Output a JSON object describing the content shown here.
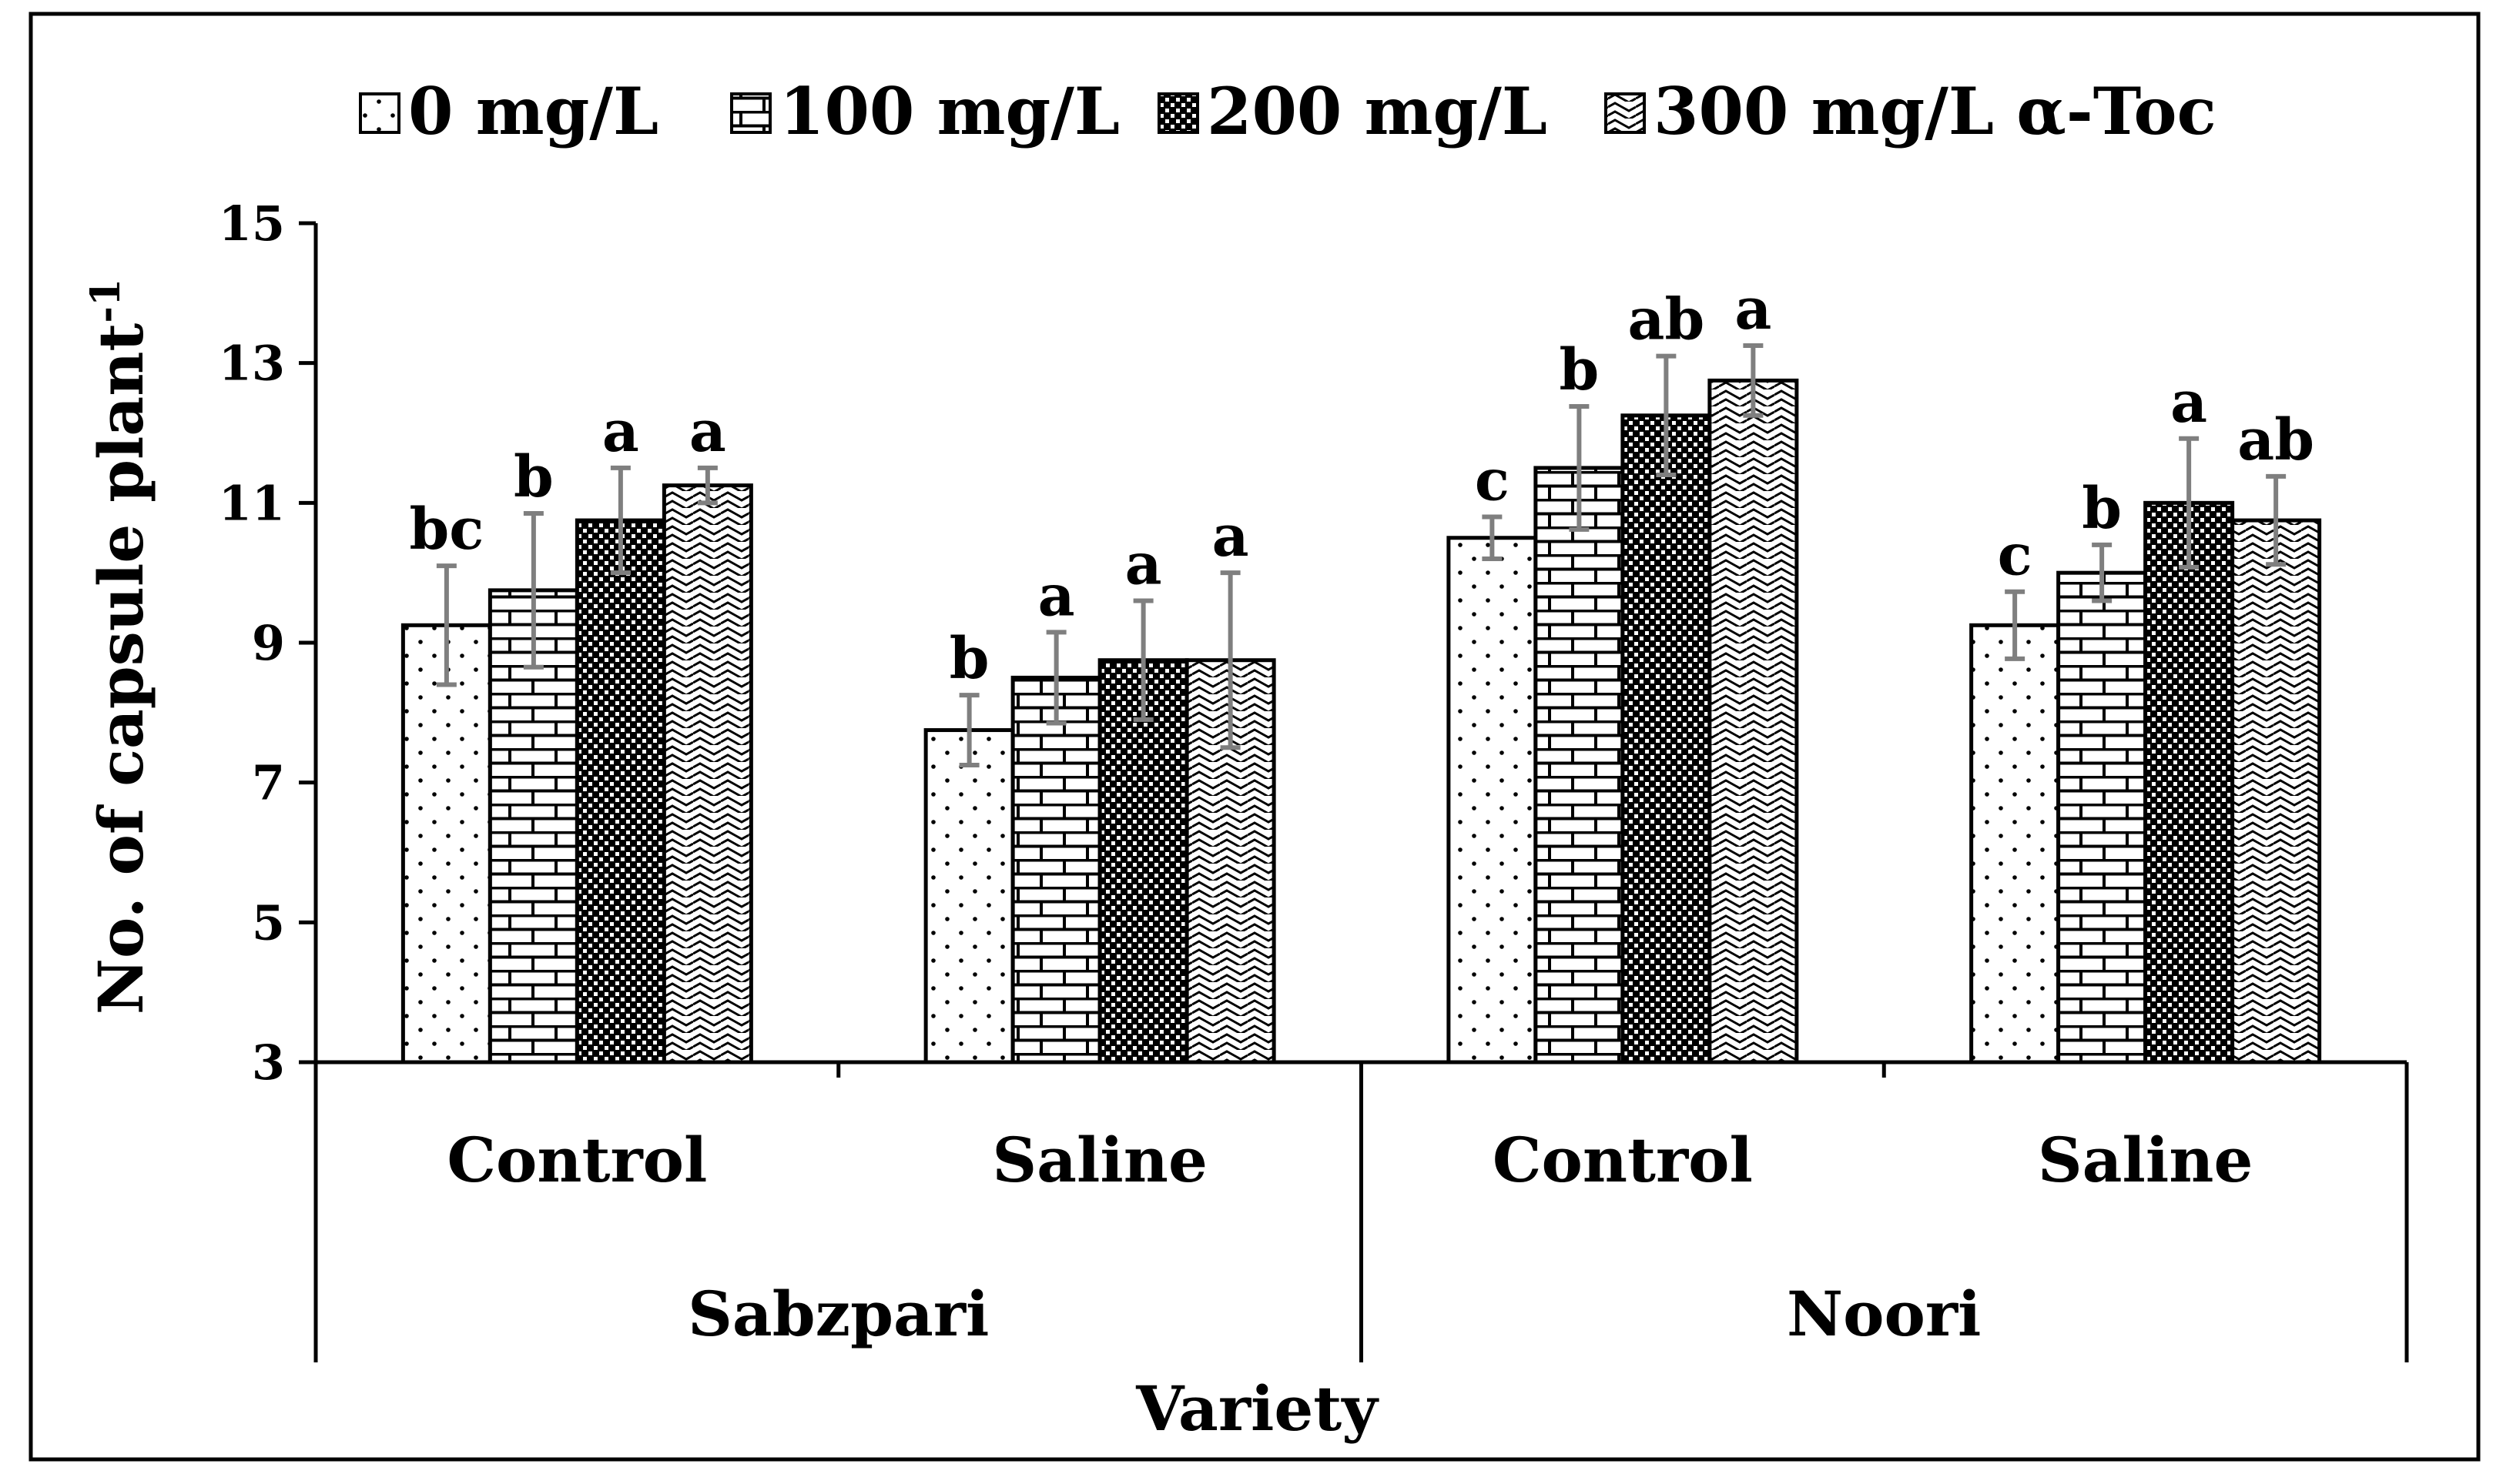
{
  "chart_data": {
    "type": "bar",
    "title": "",
    "xlabel": "Variety",
    "ylabel": "No. of capsule plant",
    "ylabel_sup": "-1",
    "ylim": [
      3,
      15
    ],
    "yticks": [
      3,
      5,
      7,
      9,
      11,
      13,
      15
    ],
    "grid": false,
    "legend_position": "top",
    "groups": [
      {
        "label": "Sabzpari",
        "categories": [
          "Control",
          "Saline"
        ]
      },
      {
        "label": "Noori",
        "categories": [
          "Control",
          "Saline"
        ]
      }
    ],
    "categories": [
      "Control",
      "Saline",
      "Control",
      "Saline"
    ],
    "series": [
      {
        "name": "0 mg/L",
        "pattern": "dots",
        "values": [
          9.25,
          7.75,
          10.5,
          9.25
        ],
        "errors": [
          0.85,
          0.5,
          0.3,
          0.48
        ],
        "letters": [
          "bc",
          "b",
          "c",
          "c"
        ]
      },
      {
        "name": "100 mg/L",
        "pattern": "bricks",
        "values": [
          9.75,
          8.5,
          11.5,
          10.0
        ],
        "errors": [
          1.1,
          0.65,
          0.88,
          0.4
        ],
        "letters": [
          "b",
          "a",
          "b",
          "b"
        ]
      },
      {
        "name": "200 mg/L",
        "pattern": "checker",
        "values": [
          10.75,
          8.75,
          12.25,
          11.0
        ],
        "errors": [
          0.75,
          0.85,
          0.85,
          0.92
        ],
        "letters": [
          "a",
          "a",
          "ab",
          "a"
        ]
      },
      {
        "name": "300 mg/L α-Toc",
        "pattern": "waves",
        "values": [
          11.25,
          8.75,
          12.75,
          10.75
        ],
        "errors": [
          0.25,
          1.25,
          0.5,
          0.63
        ],
        "letters": [
          "a",
          "a",
          "a",
          "ab"
        ]
      }
    ],
    "colors": {
      "bar_fill": "#ffffff",
      "outline": "#000000",
      "error_bar": "#7f7f7f"
    }
  }
}
